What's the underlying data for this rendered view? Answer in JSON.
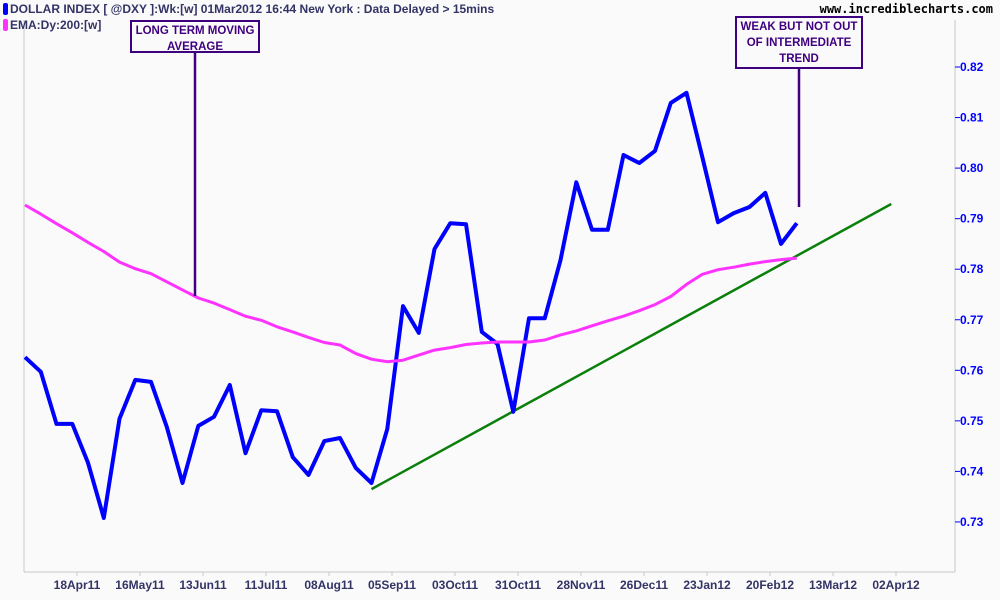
{
  "header": {
    "legend_price": "DOLLAR INDEX [ @DXY ]:Wk:[w]  01Mar2012 16:44 New York : Data Delayed > 15mins",
    "legend_ema": "EMA:Dy:200:[w]",
    "watermark": "www.incrediblecharts.com"
  },
  "chart_data": {
    "type": "line",
    "title": "DOLLAR INDEX [ @DXY ]:Wk:[w]  01Mar2012 16:44 New York : Data Delayed > 15mins",
    "ylim": [
      0.72,
      0.83
    ],
    "grid": false,
    "y_axis_side": "right",
    "legend_placement": "top-left",
    "y_ticks": [
      "0.73",
      "0.74",
      "0.75",
      "0.76",
      "0.77",
      "0.78",
      "0.79",
      "0.80",
      "0.81",
      "0.82"
    ],
    "x_ticks": [
      "18Apr11",
      "16May11",
      "13Jun11",
      "11Jul11",
      "08Aug11",
      "05Sep11",
      "03Oct11",
      "31Oct11",
      "28Nov11",
      "26Dec11",
      "23Jan12",
      "20Feb12",
      "13Mar12",
      "02Apr12"
    ],
    "x_start": "25Mar11",
    "x_interval": "weekly",
    "x_last": "01Mar12",
    "series": [
      {
        "name": "DOLLAR INDEX [ @DXY ]:Wk:[w]",
        "color": "#0000ff",
        "values": [
          0.7626,
          0.7597,
          0.7494,
          0.7494,
          0.7417,
          0.7308,
          0.7504,
          0.7581,
          0.7577,
          0.7488,
          0.7377,
          0.749,
          0.7508,
          0.7571,
          0.7436,
          0.7521,
          0.7519,
          0.7428,
          0.7393,
          0.746,
          0.7466,
          0.7407,
          0.7377,
          0.7484,
          0.7727,
          0.7674,
          0.784,
          0.7891,
          0.7889,
          0.7676,
          0.7652,
          0.7518,
          0.7703,
          0.7703,
          0.7818,
          0.7972,
          0.7878,
          0.7878,
          0.8026,
          0.801,
          0.8034,
          0.8129,
          0.8149,
          0.8022,
          0.7893,
          0.7911,
          0.7923,
          0.7951,
          0.785,
          0.7891
        ]
      },
      {
        "name": "EMA:Dy:200:[w]",
        "color": "#ff33ff",
        "values": [
          0.7927,
          0.7909,
          0.789,
          0.7872,
          0.7853,
          0.7835,
          0.7814,
          0.7801,
          0.7791,
          0.7775,
          0.7759,
          0.7743,
          0.7733,
          0.772,
          0.7707,
          0.7699,
          0.7686,
          0.7676,
          0.7665,
          0.7655,
          0.765,
          0.7633,
          0.7622,
          0.7617,
          0.762,
          0.763,
          0.764,
          0.7645,
          0.7651,
          0.7654,
          0.7656,
          0.7656,
          0.7656,
          0.766,
          0.767,
          0.7678,
          0.7688,
          0.7698,
          0.7707,
          0.7718,
          0.773,
          0.7746,
          0.777,
          0.779,
          0.7799,
          0.7804,
          0.781,
          0.7815,
          0.7819,
          0.7822
        ]
      }
    ],
    "trendline": {
      "color": "#0a800a",
      "start": {
        "date": "26Aug11",
        "value": 0.7365
      },
      "end": {
        "date": "13Apr12",
        "value": 0.7929
      }
    },
    "annotations": [
      {
        "lines": [
          "LONG TERM MOVING",
          "AVERAGE"
        ],
        "points_to": "EMA:Dy:200:[w]"
      },
      {
        "lines": [
          "WEAK BUT NOT OUT",
          "OF INTERMEDIATE",
          "TREND"
        ],
        "points_to": "DOLLAR INDEX"
      }
    ]
  }
}
